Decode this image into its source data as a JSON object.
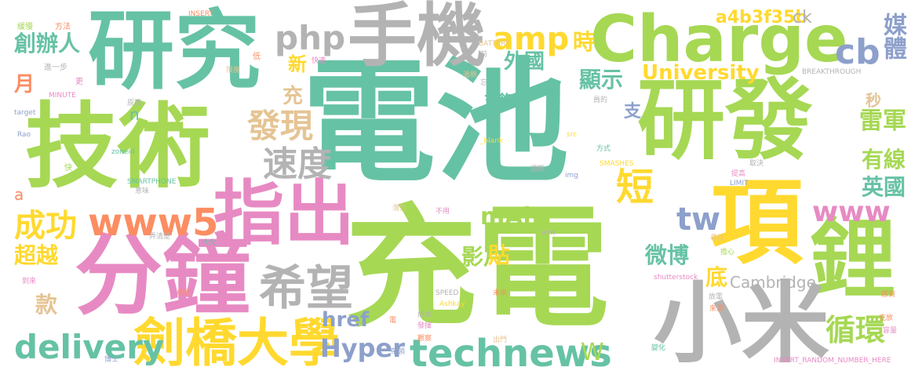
{
  "words": [
    {
      "text": "電池",
      "color": "#66c2a5"
    },
    {
      "text": "充電",
      "color": "#a6d854"
    },
    {
      "text": "技術",
      "color": "#a6d854"
    },
    {
      "text": "研究",
      "color": "#66c2a5"
    },
    {
      "text": "研發",
      "color": "#a6d854"
    },
    {
      "text": "Charge",
      "color": "#a6d854"
    },
    {
      "text": "分鐘",
      "color": "#e78ac3"
    },
    {
      "text": "手機",
      "color": "#b3b3b3"
    },
    {
      "text": "項",
      "color": "#ffd92f"
    },
    {
      "text": "鋰",
      "color": "#a6d854"
    },
    {
      "text": "小米",
      "color": "#b3b3b3"
    },
    {
      "text": "指出",
      "color": "#e78ac3"
    },
    {
      "text": "劍橋大學",
      "color": "#ffd92f"
    },
    {
      "text": "technews",
      "color": "#66c2a5"
    },
    {
      "text": "www5",
      "color": "#fc8d62"
    },
    {
      "text": "希望",
      "color": "#b3b3b3"
    },
    {
      "text": "delivery",
      "color": "#66c2a5"
    },
    {
      "text": "www",
      "color": "#e78ac3"
    },
    {
      "text": "php",
      "color": "#b3b3b3"
    },
    {
      "text": "amp",
      "color": "#ffd92f"
    },
    {
      "text": "cb",
      "color": "#8da0cb"
    },
    {
      "text": "速度",
      "color": "#b3b3b3"
    },
    {
      "text": "發現",
      "color": "#e5c494"
    },
    {
      "text": "短",
      "color": "#ffd92f"
    },
    {
      "text": "tw",
      "color": "#8da0cb"
    },
    {
      "text": "成功",
      "color": "#ffd92f"
    },
    {
      "text": "Hyper",
      "color": "#8da0cb"
    },
    {
      "text": "University",
      "color": "#ffd92f"
    },
    {
      "text": "創辦人",
      "color": "#66c2a5"
    },
    {
      "text": "媒體",
      "color": "#8da0cb"
    },
    {
      "text": "雷軍",
      "color": "#a6d854"
    },
    {
      "text": "有線",
      "color": "#a6d854"
    },
    {
      "text": "英國",
      "color": "#66c2a5"
    },
    {
      "text": "循環",
      "color": "#a6d854"
    },
    {
      "text": "微博",
      "color": "#66c2a5"
    },
    {
      "text": "超越",
      "color": "#ffd92f"
    },
    {
      "text": "mAh",
      "color": "#a6d854"
    },
    {
      "text": "影片",
      "color": "#a6d854"
    },
    {
      "text": "Cambridge",
      "color": "#b3b3b3"
    },
    {
      "text": "href",
      "color": "#8da0cb"
    },
    {
      "text": "a4b3f35b",
      "color": "#ffd92f"
    },
    {
      "text": "外國",
      "color": "#66c2a5"
    },
    {
      "text": "顯示",
      "color": "#66c2a5"
    },
    {
      "text": "時",
      "color": "#ffd92f"
    },
    {
      "text": "ck",
      "color": "#b3b3b3"
    },
    {
      "text": "新",
      "color": "#ffd92f"
    },
    {
      "text": "充",
      "color": "#e5c494"
    },
    {
      "text": "月",
      "color": "#fc8d62"
    },
    {
      "text": "秒",
      "color": "#e5c494"
    },
    {
      "text": "支",
      "color": "#8da0cb"
    },
    {
      "text": "充飽",
      "color": "#66c2a5"
    },
    {
      "text": "貼",
      "color": "#ffd92f"
    },
    {
      "text": "底",
      "color": "#ffd92f"
    },
    {
      "text": "款",
      "color": "#e5c494"
    },
    {
      "text": "W",
      "color": "#a6d854"
    },
    {
      "text": "n",
      "color": "#66c2a5"
    },
    {
      "text": "a",
      "color": "#fc8d62"
    },
    {
      "text": "INSERT",
      "color": "#fc8d62"
    },
    {
      "text": "緩慢",
      "color": "#a6d854"
    },
    {
      "text": "方法",
      "color": "#fc8d62"
    },
    {
      "text": "進一步",
      "color": "#b3b3b3"
    },
    {
      "text": "更",
      "color": "#e78ac3"
    },
    {
      "text": "MINUTE",
      "color": "#e78ac3"
    },
    {
      "text": "target",
      "color": "#8da0cb"
    },
    {
      "text": "Rao",
      "color": "#8da0cb"
    },
    {
      "text": "原理",
      "color": "#b3b3b3"
    },
    {
      "text": "快",
      "color": "#a6d854"
    },
    {
      "text": "低",
      "color": "#fc8d62"
    },
    {
      "text": "快速",
      "color": "#e78ac3"
    },
    {
      "text": "限度",
      "color": "#e5c494"
    },
    {
      "text": "BATTERY",
      "color": "#e5c494"
    },
    {
      "text": "前",
      "color": "#b3b3b3"
    },
    {
      "text": "過熱",
      "color": "#e5c494"
    },
    {
      "text": "忘",
      "color": "#b3b3b3"
    },
    {
      "text": "BREAKTHROUGH",
      "color": "#b3b3b3"
    },
    {
      "text": "員的",
      "color": "#b3b3b3"
    },
    {
      "text": "_blank",
      "color": "#ffd92f"
    },
    {
      "text": "src",
      "color": "#ffd92f"
    },
    {
      "text": "方式",
      "color": "#66c2a5"
    },
    {
      "text": "zoneid",
      "color": "#66c2a5"
    },
    {
      "text": "SMARTPHONE",
      "color": "#66c2a5"
    },
    {
      "text": "意味",
      "color": "#b3b3b3"
    },
    {
      "text": "img",
      "color": "#8da0cb"
    },
    {
      "text": "週期",
      "color": "#b3b3b3"
    },
    {
      "text": "SMASHES",
      "color": "#ffd92f"
    },
    {
      "text": "LIMIT",
      "color": "#8da0cb"
    },
    {
      "text": "提高",
      "color": "#e78ac3"
    },
    {
      "text": "取決",
      "color": "#b3b3b3"
    },
    {
      "text": "潛力",
      "color": "#e5c494"
    },
    {
      "text": "不用",
      "color": "#e78ac3"
    },
    {
      "text": "弄清楚",
      "color": "#b3b3b3"
    },
    {
      "text": "大化",
      "color": "#66c2a5"
    },
    {
      "text": "焦慮",
      "color": "#e78ac3"
    },
    {
      "text": "avw",
      "color": "#b3b3b3"
    },
    {
      "text": "尋找",
      "color": "#e5c494"
    },
    {
      "text": "擔心",
      "color": "#a6d854"
    },
    {
      "text": "到來",
      "color": "#e78ac3"
    },
    {
      "text": "shutterstock",
      "color": "#e78ac3"
    },
    {
      "text": "成員",
      "color": "#fc8d62"
    },
    {
      "text": "SPEED",
      "color": "#b3b3b3"
    },
    {
      "text": "未來",
      "color": "#fc8d62"
    },
    {
      "text": "Ashkay",
      "color": "#ffd92f"
    },
    {
      "text": "放電",
      "color": "#b3b3b3"
    },
    {
      "text": "來源",
      "color": "#fc8d62"
    },
    {
      "text": "感到",
      "color": "#fc8d62"
    },
    {
      "text": "電",
      "color": "#fc8d62"
    },
    {
      "text": "成本",
      "color": "#b3b3b3"
    },
    {
      "text": "發揮",
      "color": "#e78ac3"
    },
    {
      "text": "觀察",
      "color": "#fc8d62"
    },
    {
      "text": "出門",
      "color": "#e5c494"
    },
    {
      "text": "帶領",
      "color": "#8da0cb"
    },
    {
      "text": "博士",
      "color": "#8da0cb"
    },
    {
      "text": "充放",
      "color": "#fc8d62"
    },
    {
      "text": "容量",
      "color": "#e78ac3"
    },
    {
      "text": "變化",
      "color": "#66c2a5"
    },
    {
      "text": "INSERT_RANDOM_NUMBER_HERE",
      "color": "#e78ac3"
    }
  ]
}
